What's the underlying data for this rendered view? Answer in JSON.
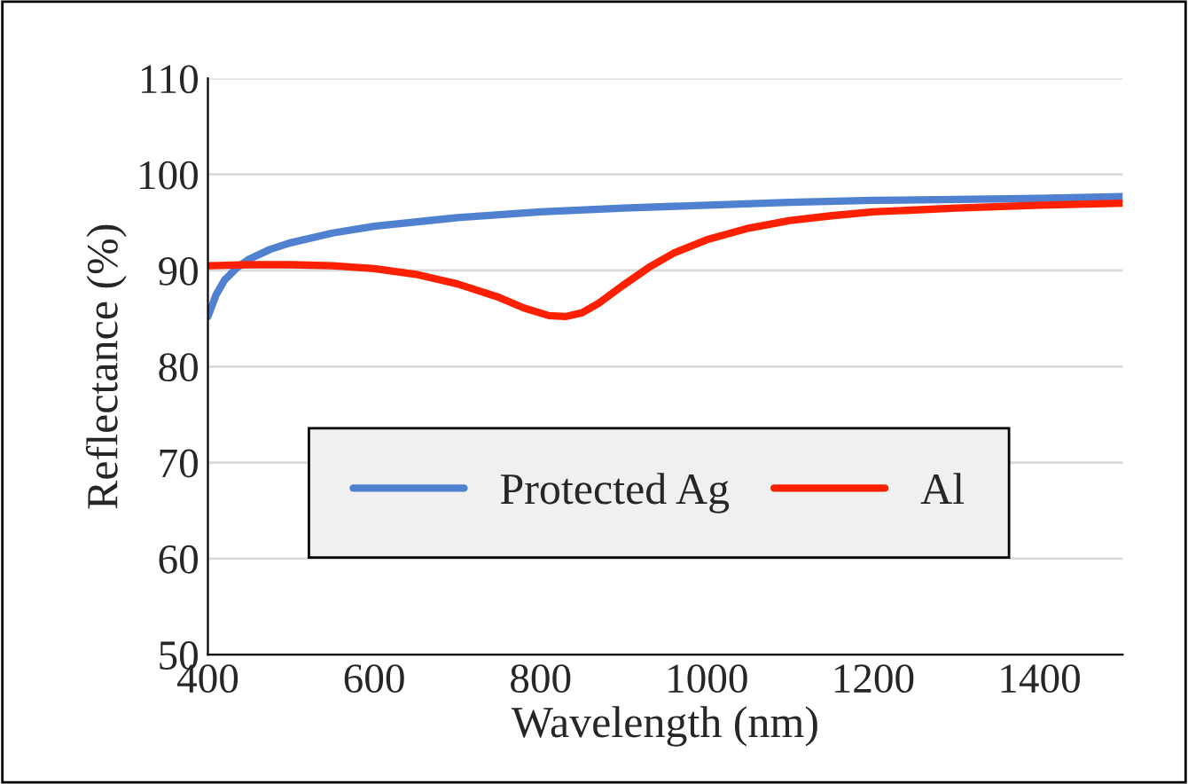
{
  "chart_data": {
    "type": "line",
    "xlabel": "Wavelength (nm)",
    "ylabel": "Reflectance (%)",
    "xlim": [
      400,
      1500
    ],
    "xticks": [
      400,
      600,
      800,
      1000,
      1200,
      1400
    ],
    "ylim": [
      50,
      110
    ],
    "yticks": [
      50,
      60,
      70,
      80,
      90,
      100,
      110
    ],
    "grid": "y",
    "legend": "bottom right",
    "marker": "none",
    "line_style": "solid",
    "series": [
      {
        "name": "Protected Ag",
        "color": "#4f81d0",
        "x": [
          400,
          410,
          420,
          435,
          450,
          475,
          500,
          550,
          600,
          700,
          800,
          900,
          1000,
          1100,
          1200,
          1300,
          1400,
          1500
        ],
        "values": [
          85.2,
          87.5,
          89,
          90.3,
          91.2,
          92.2,
          92.9,
          93.9,
          94.6,
          95.5,
          96.1,
          96.5,
          96.8,
          97.1,
          97.3,
          97.4,
          97.5,
          97.7
        ]
      },
      {
        "name": "Al",
        "color": "#ff2000",
        "x": [
          400,
          450,
          500,
          550,
          600,
          650,
          700,
          750,
          780,
          810,
          830,
          850,
          870,
          900,
          930,
          960,
          1000,
          1050,
          1100,
          1150,
          1200,
          1300,
          1400,
          1500
        ],
        "values": [
          90.5,
          90.6,
          90.6,
          90.5,
          90.2,
          89.6,
          88.6,
          87.2,
          86.1,
          85.3,
          85.2,
          85.6,
          86.6,
          88.5,
          90.3,
          91.8,
          93.2,
          94.4,
          95.2,
          95.7,
          96.1,
          96.5,
          96.8,
          97.0
        ]
      }
    ]
  }
}
